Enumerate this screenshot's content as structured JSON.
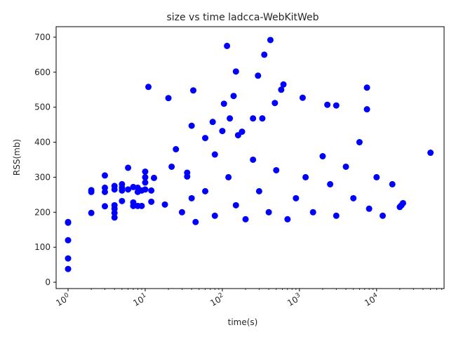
{
  "chart_data": {
    "type": "scatter",
    "title": "size vs time ladcca-WebKitWeb",
    "xlabel": "time(s)",
    "ylabel": "RSS(mb)",
    "xscale": "log",
    "xlim": [
      0.7,
      75000
    ],
    "ylim": [
      -18,
      730
    ],
    "y_ticks": [
      0,
      100,
      200,
      300,
      400,
      500,
      600,
      700
    ],
    "x_ticks": [
      1,
      10,
      100,
      1000,
      10000
    ],
    "x_tick_labels": [
      "10^0",
      "10^1",
      "10^2",
      "10^3",
      "10^4"
    ],
    "point_color": "#0000ff",
    "grid": false,
    "legend": "none",
    "highlighted_points": [
      {
        "x": 1,
        "y": 38
      },
      {
        "x": 1,
        "y": 68
      },
      {
        "x": 1,
        "y": 120
      },
      {
        "x": 1,
        "y": 170
      },
      {
        "x": 1,
        "y": 172
      },
      {
        "x": 2,
        "y": 198
      },
      {
        "x": 2,
        "y": 258
      },
      {
        "x": 2,
        "y": 263
      },
      {
        "x": 3,
        "y": 217
      },
      {
        "x": 3,
        "y": 258
      },
      {
        "x": 3,
        "y": 270
      },
      {
        "x": 3,
        "y": 305
      },
      {
        "x": 4,
        "y": 185
      },
      {
        "x": 4,
        "y": 198
      },
      {
        "x": 4,
        "y": 210
      },
      {
        "x": 4,
        "y": 220
      },
      {
        "x": 4,
        "y": 265
      },
      {
        "x": 4,
        "y": 275
      },
      {
        "x": 5,
        "y": 232
      },
      {
        "x": 5,
        "y": 262
      },
      {
        "x": 5,
        "y": 270
      },
      {
        "x": 5,
        "y": 280
      },
      {
        "x": 6,
        "y": 265
      },
      {
        "x": 6,
        "y": 327
      },
      {
        "x": 7,
        "y": 218
      },
      {
        "x": 7,
        "y": 228
      },
      {
        "x": 7,
        "y": 272
      },
      {
        "x": 8,
        "y": 218
      },
      {
        "x": 8,
        "y": 258
      },
      {
        "x": 8,
        "y": 270
      },
      {
        "x": 9,
        "y": 218
      },
      {
        "x": 9,
        "y": 262
      },
      {
        "x": 10,
        "y": 265
      },
      {
        "x": 10,
        "y": 285
      },
      {
        "x": 10,
        "y": 300
      },
      {
        "x": 10,
        "y": 316
      },
      {
        "x": 11,
        "y": 558
      },
      {
        "x": 12,
        "y": 230
      },
      {
        "x": 12,
        "y": 262
      },
      {
        "x": 13,
        "y": 298
      },
      {
        "x": 18,
        "y": 222
      },
      {
        "x": 20,
        "y": 526
      },
      {
        "x": 22,
        "y": 330
      },
      {
        "x": 25,
        "y": 380
      },
      {
        "x": 35,
        "y": 302
      },
      {
        "x": 35,
        "y": 313
      },
      {
        "x": 40,
        "y": 447
      },
      {
        "x": 42,
        "y": 548
      },
      {
        "x": 45,
        "y": 172
      },
      {
        "x": 60,
        "y": 412
      },
      {
        "x": 75,
        "y": 458
      },
      {
        "x": 80,
        "y": 365
      },
      {
        "x": 100,
        "y": 432
      },
      {
        "x": 105,
        "y": 510
      },
      {
        "x": 115,
        "y": 675
      },
      {
        "x": 125,
        "y": 468
      },
      {
        "x": 140,
        "y": 532
      },
      {
        "x": 150,
        "y": 602
      },
      {
        "x": 160,
        "y": 420
      },
      {
        "x": 180,
        "y": 430
      },
      {
        "x": 250,
        "y": 468
      },
      {
        "x": 290,
        "y": 590
      },
      {
        "x": 330,
        "y": 468
      },
      {
        "x": 350,
        "y": 650
      },
      {
        "x": 420,
        "y": 692
      },
      {
        "x": 480,
        "y": 512
      },
      {
        "x": 580,
        "y": 550
      },
      {
        "x": 620,
        "y": 565
      },
      {
        "x": 1100,
        "y": 527
      },
      {
        "x": 2300,
        "y": 507
      },
      {
        "x": 3000,
        "y": 505
      },
      {
        "x": 7500,
        "y": 556
      },
      {
        "x": 7500,
        "y": 494
      },
      {
        "x": 16000,
        "y": 280
      },
      {
        "x": 20000,
        "y": 215
      },
      {
        "x": 21000,
        "y": 220
      },
      {
        "x": 22000,
        "y": 226
      },
      {
        "x": 50000,
        "y": 370
      }
    ],
    "bulk_region_note": "",
    "bulk_points": [
      {
        "x": 30,
        "y": 200
      },
      {
        "x": 40,
        "y": 240
      },
      {
        "x": 60,
        "y": 260
      },
      {
        "x": 80,
        "y": 190
      },
      {
        "x": 120,
        "y": 300
      },
      {
        "x": 150,
        "y": 220
      },
      {
        "x": 200,
        "y": 180
      },
      {
        "x": 250,
        "y": 350
      },
      {
        "x": 300,
        "y": 260
      },
      {
        "x": 400,
        "y": 200
      },
      {
        "x": 500,
        "y": 320
      },
      {
        "x": 700,
        "y": 180
      },
      {
        "x": 900,
        "y": 240
      },
      {
        "x": 1200,
        "y": 300
      },
      {
        "x": 1500,
        "y": 200
      },
      {
        "x": 2000,
        "y": 360
      },
      {
        "x": 2500,
        "y": 280
      },
      {
        "x": 3000,
        "y": 190
      },
      {
        "x": 4000,
        "y": 330
      },
      {
        "x": 5000,
        "y": 240
      },
      {
        "x": 6000,
        "y": 400
      },
      {
        "x": 8000,
        "y": 210
      },
      {
        "x": 10000,
        "y": 300
      },
      {
        "x": 12000,
        "y": 190
      }
    ]
  }
}
